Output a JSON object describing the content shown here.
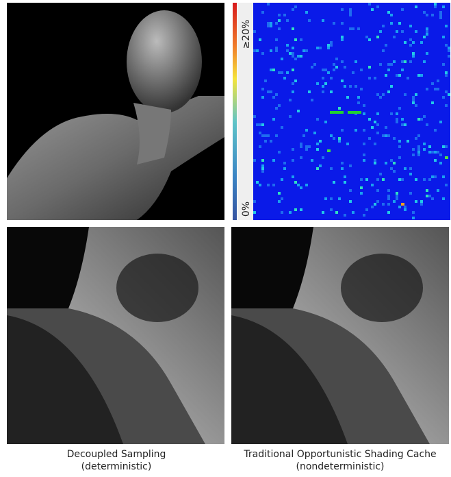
{
  "colorbar": {
    "max_label": "≥20%",
    "min_label": "0%"
  },
  "captions": [
    {
      "line1": "Decoupled Sampling",
      "line2": "(deterministic)"
    },
    {
      "line1": "Traditional Opportunistic Shading Cache",
      "line2": "(nondeterministic)"
    }
  ]
}
